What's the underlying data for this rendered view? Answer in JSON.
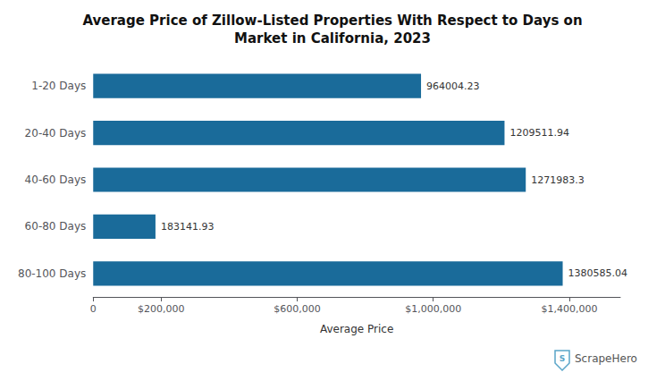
{
  "chart_data": {
    "type": "bar",
    "orientation": "horizontal",
    "title": "Average Price of Zillow-Listed Properties With Respect to Days on\nMarket in California, 2023",
    "categories": [
      "1-20 Days",
      "20-40 Days",
      "40-60 Days",
      "60-80 Days",
      "80-100 Days"
    ],
    "values": [
      964004.23,
      1209511.94,
      1271983.3,
      183141.93,
      1380585.04
    ],
    "color": "#1a6b9a",
    "data_labels": true,
    "xlabel": "Average Price",
    "xlim": [
      0,
      1550000
    ],
    "xticks": [
      0,
      {
        "value": 200000,
        "label": "$200,000"
      },
      {
        "value": 600000,
        "label": "$600,000"
      },
      {
        "value": 1000000,
        "label": "$1,000,000"
      },
      {
        "value": 1400000,
        "label": "$1,400,000"
      }
    ],
    "grid": false,
    "annotations": [
      {
        "text": "S",
        "color": "#5aa5c8"
      },
      {
        "text": "ScrapeHero"
      }
    ]
  }
}
